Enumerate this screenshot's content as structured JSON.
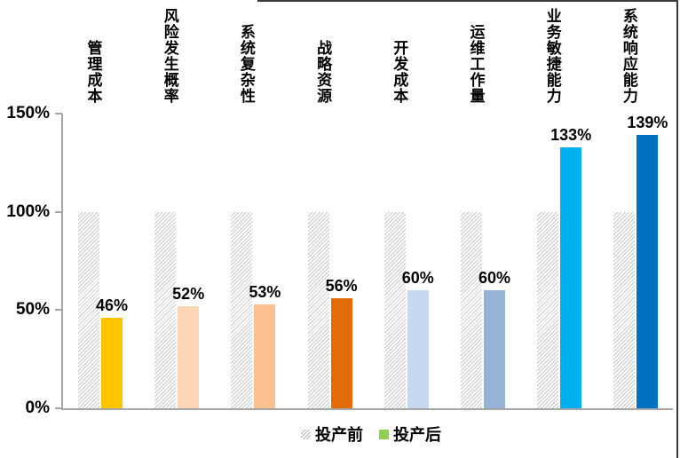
{
  "chart_data": {
    "type": "bar",
    "title": "",
    "categories": [
      "管理成本",
      "风险发生概率",
      "系统复杂性",
      "战略资源",
      "开发成本",
      "运维工作量",
      "业务敏捷能力",
      "系统响应能力"
    ],
    "series": [
      {
        "name": "投产前",
        "values": [
          100,
          100,
          100,
          100,
          100,
          100,
          100,
          100
        ],
        "fill": "hatched-gray"
      },
      {
        "name": "投产后",
        "values": [
          46,
          52,
          53,
          56,
          60,
          60,
          133,
          139
        ],
        "value_labels": [
          "46%",
          "52%",
          "53%",
          "56%",
          "60%",
          "60%",
          "133%",
          "139%"
        ],
        "bar_colors": [
          "#FFC400",
          "#FBD5B5",
          "#FAC090",
          "#E36C09",
          "#C6D9F1",
          "#95B3D7",
          "#00B0F0",
          "#0070C0"
        ]
      }
    ],
    "y_axis": {
      "min": 0,
      "max": 150,
      "ticks": [
        {
          "label": "150%",
          "value": 150
        },
        {
          "label": "100%",
          "value": 100
        },
        {
          "label": "50%",
          "value": 50
        },
        {
          "label": "0%",
          "value": 0
        }
      ]
    },
    "grid": false,
    "legend": {
      "position": "bottom",
      "items": [
        {
          "label": "投产前",
          "swatch": "hatched-gray"
        },
        {
          "label": "投产后",
          "swatch": "#92D050"
        }
      ]
    }
  },
  "style_colors": {
    "axis": "#A6A6A6",
    "hatch_stripe": "#C9C9C9",
    "label_text": "#000000",
    "frame_border": "#3A3A3A",
    "legend_after_swatch": "#92D050"
  }
}
